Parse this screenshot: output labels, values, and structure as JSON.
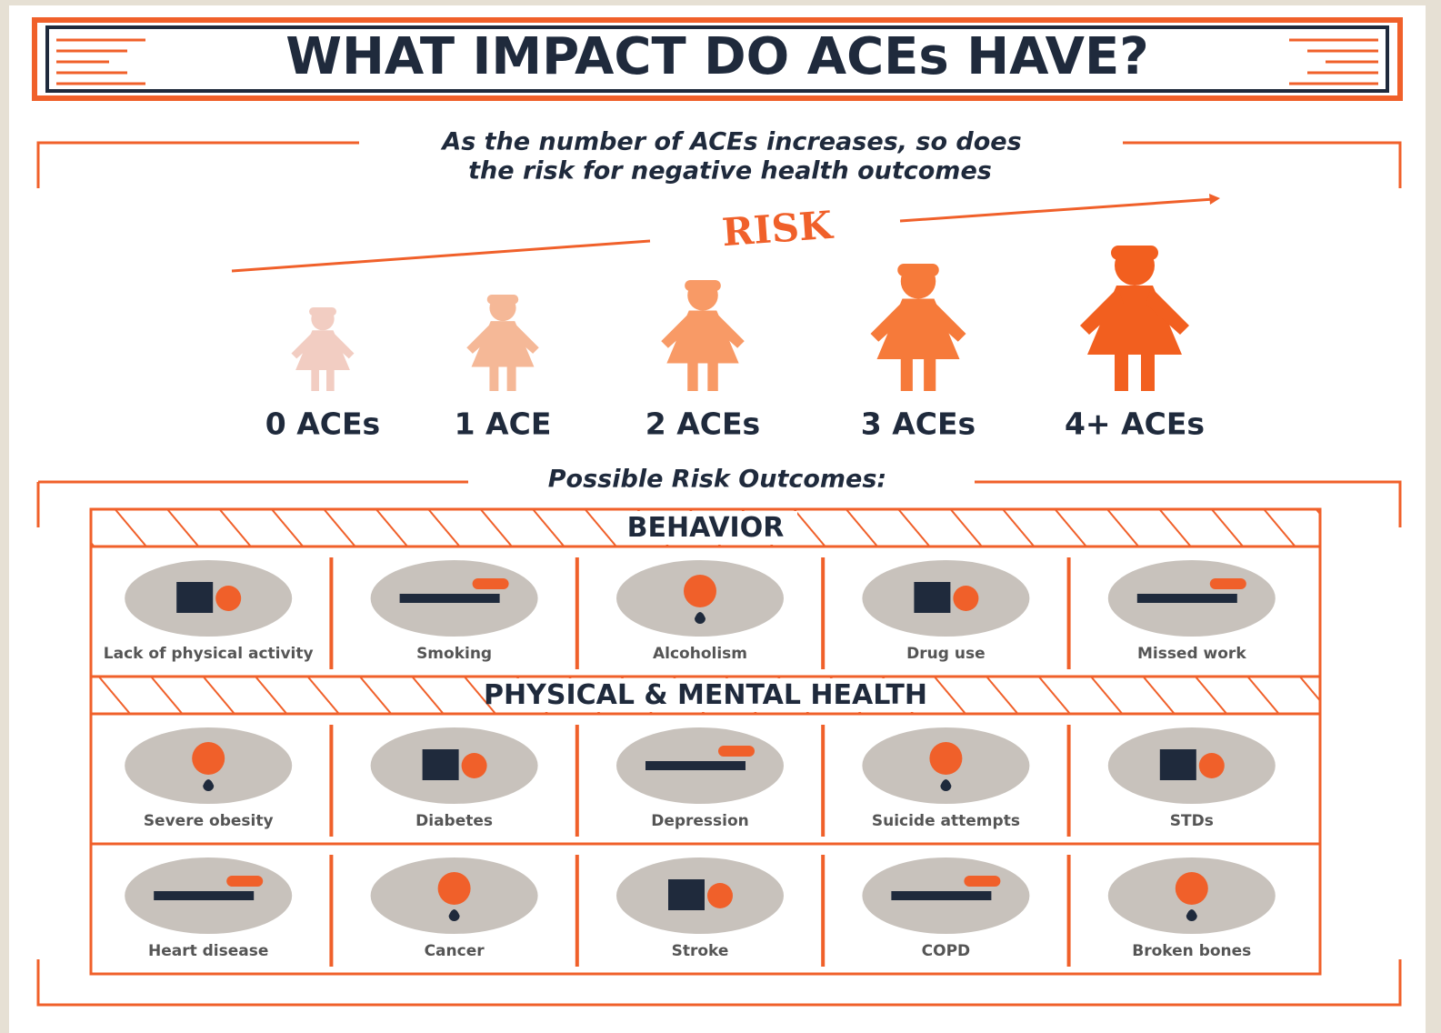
{
  "header": {
    "title": "WHAT IMPACT DO ACEs HAVE?"
  },
  "subtitle": [
    "As the number of ACEs increases, so does",
    "the risk for negative health outcomes"
  ],
  "risk_label": "RISK",
  "levels": [
    "0 ACEs",
    "1 ACE",
    "2 ACEs",
    "3 ACEs",
    "4+ ACEs"
  ],
  "outcomes_heading": "Possible Risk Outcomes:",
  "sections": [
    {
      "title": "BEHAVIOR",
      "rows": [
        [
          "Lack of physical activity",
          "Smoking",
          "Alcoholism",
          "Drug use",
          "Missed work"
        ]
      ]
    },
    {
      "title": "PHYSICAL & MENTAL HEALTH",
      "rows": [
        [
          "Severe obesity",
          "Diabetes",
          "Depression",
          "Suicide attempts",
          "STDs"
        ],
        [
          "Heart disease",
          "Cancer",
          "Stroke",
          "COPD",
          "Broken bones"
        ]
      ]
    }
  ]
}
